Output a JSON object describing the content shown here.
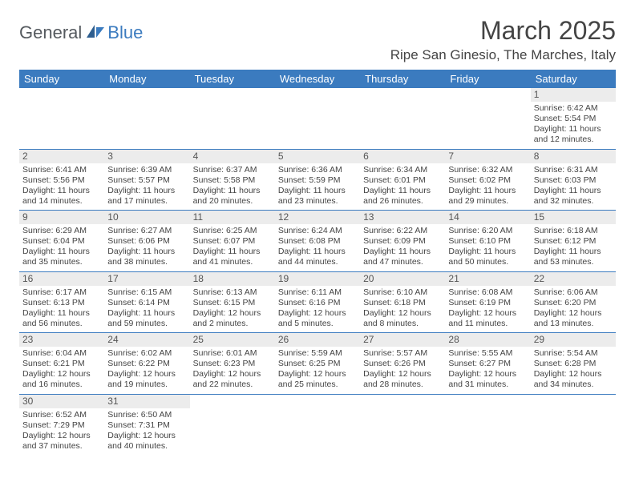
{
  "logo": {
    "text1": "General",
    "text2": "Blue"
  },
  "title": "March 2025",
  "location": "Ripe San Ginesio, The Marches, Italy",
  "colors": {
    "header_bg": "#3b7bbf",
    "header_text": "#ffffff",
    "daynum_bg": "#ececec",
    "border": "#3b7bbf",
    "text": "#444444"
  },
  "daysOfWeek": [
    "Sunday",
    "Monday",
    "Tuesday",
    "Wednesday",
    "Thursday",
    "Friday",
    "Saturday"
  ],
  "weeks": [
    [
      null,
      null,
      null,
      null,
      null,
      null,
      {
        "n": "1",
        "sr": "Sunrise: 6:42 AM",
        "ss": "Sunset: 5:54 PM",
        "dl1": "Daylight: 11 hours",
        "dl2": "and 12 minutes."
      }
    ],
    [
      {
        "n": "2",
        "sr": "Sunrise: 6:41 AM",
        "ss": "Sunset: 5:56 PM",
        "dl1": "Daylight: 11 hours",
        "dl2": "and 14 minutes."
      },
      {
        "n": "3",
        "sr": "Sunrise: 6:39 AM",
        "ss": "Sunset: 5:57 PM",
        "dl1": "Daylight: 11 hours",
        "dl2": "and 17 minutes."
      },
      {
        "n": "4",
        "sr": "Sunrise: 6:37 AM",
        "ss": "Sunset: 5:58 PM",
        "dl1": "Daylight: 11 hours",
        "dl2": "and 20 minutes."
      },
      {
        "n": "5",
        "sr": "Sunrise: 6:36 AM",
        "ss": "Sunset: 5:59 PM",
        "dl1": "Daylight: 11 hours",
        "dl2": "and 23 minutes."
      },
      {
        "n": "6",
        "sr": "Sunrise: 6:34 AM",
        "ss": "Sunset: 6:01 PM",
        "dl1": "Daylight: 11 hours",
        "dl2": "and 26 minutes."
      },
      {
        "n": "7",
        "sr": "Sunrise: 6:32 AM",
        "ss": "Sunset: 6:02 PM",
        "dl1": "Daylight: 11 hours",
        "dl2": "and 29 minutes."
      },
      {
        "n": "8",
        "sr": "Sunrise: 6:31 AM",
        "ss": "Sunset: 6:03 PM",
        "dl1": "Daylight: 11 hours",
        "dl2": "and 32 minutes."
      }
    ],
    [
      {
        "n": "9",
        "sr": "Sunrise: 6:29 AM",
        "ss": "Sunset: 6:04 PM",
        "dl1": "Daylight: 11 hours",
        "dl2": "and 35 minutes."
      },
      {
        "n": "10",
        "sr": "Sunrise: 6:27 AM",
        "ss": "Sunset: 6:06 PM",
        "dl1": "Daylight: 11 hours",
        "dl2": "and 38 minutes."
      },
      {
        "n": "11",
        "sr": "Sunrise: 6:25 AM",
        "ss": "Sunset: 6:07 PM",
        "dl1": "Daylight: 11 hours",
        "dl2": "and 41 minutes."
      },
      {
        "n": "12",
        "sr": "Sunrise: 6:24 AM",
        "ss": "Sunset: 6:08 PM",
        "dl1": "Daylight: 11 hours",
        "dl2": "and 44 minutes."
      },
      {
        "n": "13",
        "sr": "Sunrise: 6:22 AM",
        "ss": "Sunset: 6:09 PM",
        "dl1": "Daylight: 11 hours",
        "dl2": "and 47 minutes."
      },
      {
        "n": "14",
        "sr": "Sunrise: 6:20 AM",
        "ss": "Sunset: 6:10 PM",
        "dl1": "Daylight: 11 hours",
        "dl2": "and 50 minutes."
      },
      {
        "n": "15",
        "sr": "Sunrise: 6:18 AM",
        "ss": "Sunset: 6:12 PM",
        "dl1": "Daylight: 11 hours",
        "dl2": "and 53 minutes."
      }
    ],
    [
      {
        "n": "16",
        "sr": "Sunrise: 6:17 AM",
        "ss": "Sunset: 6:13 PM",
        "dl1": "Daylight: 11 hours",
        "dl2": "and 56 minutes."
      },
      {
        "n": "17",
        "sr": "Sunrise: 6:15 AM",
        "ss": "Sunset: 6:14 PM",
        "dl1": "Daylight: 11 hours",
        "dl2": "and 59 minutes."
      },
      {
        "n": "18",
        "sr": "Sunrise: 6:13 AM",
        "ss": "Sunset: 6:15 PM",
        "dl1": "Daylight: 12 hours",
        "dl2": "and 2 minutes."
      },
      {
        "n": "19",
        "sr": "Sunrise: 6:11 AM",
        "ss": "Sunset: 6:16 PM",
        "dl1": "Daylight: 12 hours",
        "dl2": "and 5 minutes."
      },
      {
        "n": "20",
        "sr": "Sunrise: 6:10 AM",
        "ss": "Sunset: 6:18 PM",
        "dl1": "Daylight: 12 hours",
        "dl2": "and 8 minutes."
      },
      {
        "n": "21",
        "sr": "Sunrise: 6:08 AM",
        "ss": "Sunset: 6:19 PM",
        "dl1": "Daylight: 12 hours",
        "dl2": "and 11 minutes."
      },
      {
        "n": "22",
        "sr": "Sunrise: 6:06 AM",
        "ss": "Sunset: 6:20 PM",
        "dl1": "Daylight: 12 hours",
        "dl2": "and 13 minutes."
      }
    ],
    [
      {
        "n": "23",
        "sr": "Sunrise: 6:04 AM",
        "ss": "Sunset: 6:21 PM",
        "dl1": "Daylight: 12 hours",
        "dl2": "and 16 minutes."
      },
      {
        "n": "24",
        "sr": "Sunrise: 6:02 AM",
        "ss": "Sunset: 6:22 PM",
        "dl1": "Daylight: 12 hours",
        "dl2": "and 19 minutes."
      },
      {
        "n": "25",
        "sr": "Sunrise: 6:01 AM",
        "ss": "Sunset: 6:23 PM",
        "dl1": "Daylight: 12 hours",
        "dl2": "and 22 minutes."
      },
      {
        "n": "26",
        "sr": "Sunrise: 5:59 AM",
        "ss": "Sunset: 6:25 PM",
        "dl1": "Daylight: 12 hours",
        "dl2": "and 25 minutes."
      },
      {
        "n": "27",
        "sr": "Sunrise: 5:57 AM",
        "ss": "Sunset: 6:26 PM",
        "dl1": "Daylight: 12 hours",
        "dl2": "and 28 minutes."
      },
      {
        "n": "28",
        "sr": "Sunrise: 5:55 AM",
        "ss": "Sunset: 6:27 PM",
        "dl1": "Daylight: 12 hours",
        "dl2": "and 31 minutes."
      },
      {
        "n": "29",
        "sr": "Sunrise: 5:54 AM",
        "ss": "Sunset: 6:28 PM",
        "dl1": "Daylight: 12 hours",
        "dl2": "and 34 minutes."
      }
    ],
    [
      {
        "n": "30",
        "sr": "Sunrise: 6:52 AM",
        "ss": "Sunset: 7:29 PM",
        "dl1": "Daylight: 12 hours",
        "dl2": "and 37 minutes."
      },
      {
        "n": "31",
        "sr": "Sunrise: 6:50 AM",
        "ss": "Sunset: 7:31 PM",
        "dl1": "Daylight: 12 hours",
        "dl2": "and 40 minutes."
      },
      null,
      null,
      null,
      null,
      null
    ]
  ]
}
